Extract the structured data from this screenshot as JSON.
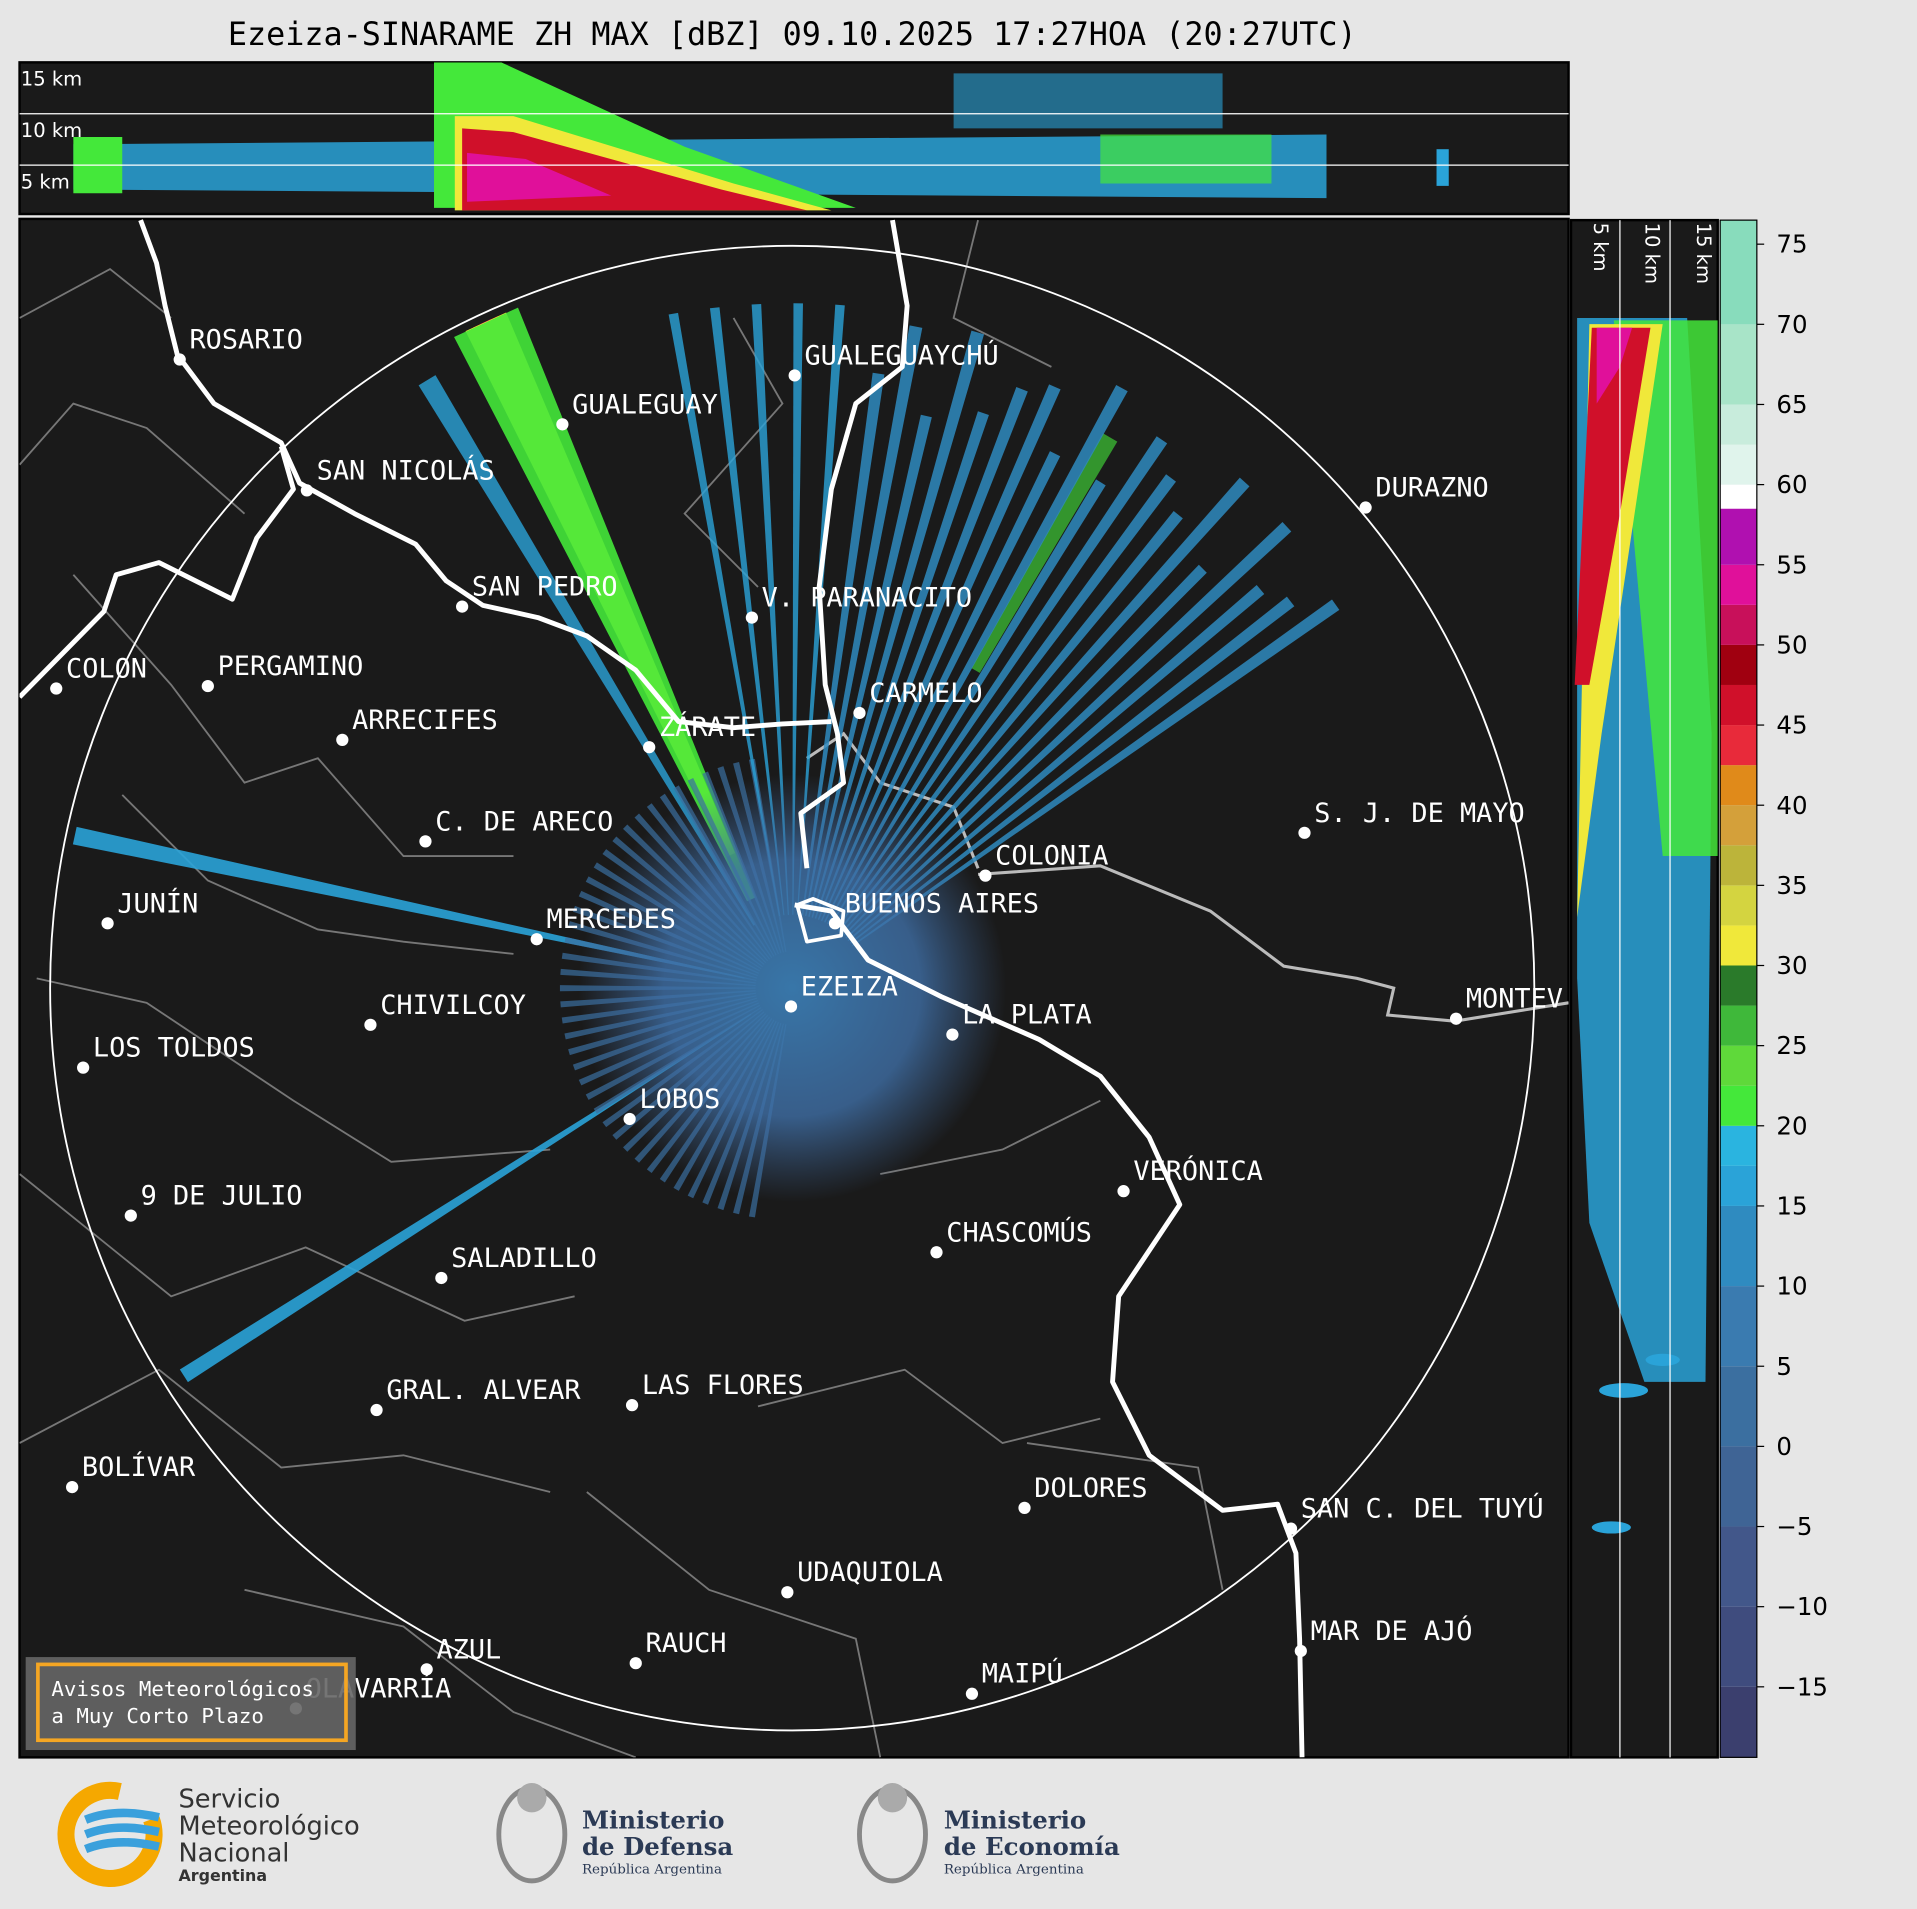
{
  "header": {
    "title": "Ezeiza-SINARAME ZH MAX [dBZ] 09.10.2025 17:27HOA (20:27UTC)"
  },
  "top_panel": {
    "height_labels": [
      "15 km",
      "10 km",
      "5 km"
    ]
  },
  "side_panel": {
    "height_labels": [
      "5 km",
      "10 km",
      "15 km"
    ]
  },
  "cities": [
    "ROSARIO",
    "GUALEGUAYCHÚ",
    "GUALEGUAY",
    "SAN NICOLÁS",
    "DURAZNO",
    "SAN PEDRO",
    "V. PARANACITO",
    "COLON",
    "PERGAMINO",
    "CARMELO",
    "ARRECIFES",
    "ZÁRATE",
    "C. DE ARECO",
    "S. J. DE MAYO",
    "COLONIA",
    "BUENOS AIRES",
    "JUNÍN",
    "MERCEDES",
    "EZEIZA",
    "LA PLATA",
    "MONTEV",
    "CHIVILCOY",
    "LOS TOLDOS",
    "LOBOS",
    "VERÓNICA",
    "9 DE JULIO",
    "CHASCOMÚS",
    "SALADILLO",
    "GRAL. ALVEAR",
    "LAS FLORES",
    "BOLÍVAR",
    "DOLORES",
    "SAN C. DEL TUYÚ",
    "UDAQUIOLA",
    "MAR DE AJÓ",
    "AZUL",
    "RAUCH",
    "OLAVARRÍA",
    "MAIPÚ"
  ],
  "notice": {
    "lines": [
      "Avisos Meteorológicos",
      "a Muy Corto Plazo"
    ]
  },
  "colorbar": {
    "bounds": [
      -19.4,
      -15,
      -10,
      -5,
      0,
      5,
      10,
      15,
      17.5,
      20,
      22.5,
      25,
      27.5,
      30,
      32.5,
      35,
      37.5,
      40,
      42.5,
      45,
      47.5,
      50,
      52.5,
      55,
      58.5,
      60,
      62.5,
      65,
      70,
      76.5
    ],
    "colors": [
      "#3b3f6e",
      "#3f4c7e",
      "#42578a",
      "#3f6495",
      "#3b6fa0",
      "#3a7bb0",
      "#2f8bc0",
      "#2aa3d8",
      "#2ab4e0",
      "#44e83a",
      "#5fd93a",
      "#3fb83a",
      "#2a7a2a",
      "#f0e83a",
      "#d4d440",
      "#bcb43a",
      "#d4a03a",
      "#e08a1a",
      "#e82a3a",
      "#d0102a",
      "#a00010",
      "#c8105a",
      "#e0109a",
      "#b010b0",
      "#ffffff",
      "#e0f4ec",
      "#c8ecdc",
      "#a8e4c8",
      "#88dcbc"
    ],
    "ticks": [
      {
        "value": -15,
        "label": "−15"
      },
      {
        "value": -10,
        "label": "−10"
      },
      {
        "value": -5,
        "label": "−5"
      },
      0,
      5,
      10,
      15,
      20,
      25,
      30,
      35,
      40,
      45,
      50,
      55,
      60,
      65,
      70,
      75
    ]
  },
  "footer": {
    "smn": [
      "Servicio",
      "Meteorológico",
      "Nacional",
      "Argentina"
    ],
    "defensa": [
      "Ministerio",
      "de Defensa",
      "República Argentina"
    ],
    "economia": [
      "Ministerio",
      "de Economía",
      "República Argentina"
    ]
  }
}
